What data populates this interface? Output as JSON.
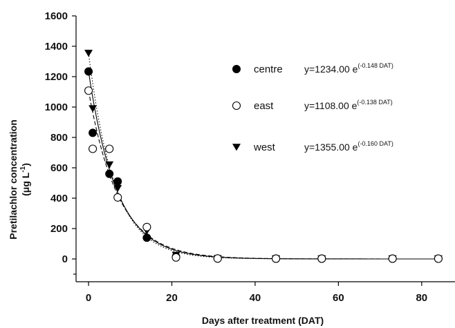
{
  "chart_data": {
    "type": "scatter",
    "title": "",
    "xlabel": "Days after treatment (DAT)",
    "ylabel_line1": "Pretilachlor concentration",
    "ylabel_line2_base": "(μg L",
    "ylabel_line2_sup": "-1",
    "ylabel_line2_end": ")",
    "xlim": [
      -3,
      88
    ],
    "ylim": [
      -150,
      1600
    ],
    "xticks": [
      0,
      20,
      40,
      60,
      80
    ],
    "yticks": [
      0,
      200,
      400,
      600,
      800,
      1000,
      1200,
      1400,
      1600
    ],
    "grid": false,
    "legend_placement": "top-right",
    "series": [
      {
        "name": "centre",
        "marker": "filled-circle",
        "fit_line": "solid",
        "fit": {
          "a": 1234.0,
          "b": -0.148
        },
        "equation_text": "y=1234.00 e",
        "equation_sup": "(-0.148 DAT)",
        "points": [
          [
            0,
            1234
          ],
          [
            1,
            830
          ],
          [
            5,
            560
          ],
          [
            7,
            510
          ],
          [
            14,
            140
          ],
          [
            21,
            15
          ],
          [
            31,
            3
          ],
          [
            45,
            2
          ],
          [
            56,
            2
          ],
          [
            73,
            2
          ],
          [
            84,
            2
          ]
        ]
      },
      {
        "name": "east",
        "marker": "open-circle",
        "fit_line": "dashed",
        "fit": {
          "a": 1108.0,
          "b": -0.138
        },
        "equation_text": "y=1108.00 e",
        "equation_sup": "(-0.138 DAT)",
        "points": [
          [
            0,
            1108
          ],
          [
            1,
            725
          ],
          [
            5,
            725
          ],
          [
            7,
            405
          ],
          [
            14,
            210
          ],
          [
            21,
            10
          ],
          [
            31,
            3
          ],
          [
            45,
            2
          ],
          [
            56,
            2
          ],
          [
            73,
            2
          ],
          [
            84,
            2
          ]
        ]
      },
      {
        "name": "west",
        "marker": "filled-triangle-down",
        "fit_line": "dotted",
        "fit": {
          "a": 1355.0,
          "b": -0.16
        },
        "equation_text": "y=1355.00 e",
        "equation_sup": "(-0.160 DAT)",
        "points": [
          [
            0,
            1355
          ],
          [
            1,
            990
          ],
          [
            5,
            620
          ],
          [
            7,
            465
          ],
          [
            14,
            185
          ],
          [
            21,
            25
          ],
          [
            31,
            3
          ],
          [
            45,
            2
          ],
          [
            56,
            2
          ],
          [
            73,
            2
          ],
          [
            84,
            2
          ]
        ]
      }
    ]
  }
}
